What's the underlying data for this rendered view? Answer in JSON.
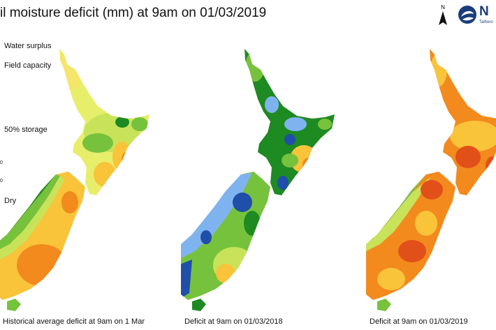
{
  "title": "il moisture deficit (mm) at  9am on 01/03/2019",
  "legend": {
    "labels": [
      "Water surplus",
      "Field capacity",
      "50% storage",
      "Dry"
    ],
    "ticks": [
      "0",
      "0"
    ],
    "colors": [
      "#1f4fa8",
      "#7fb3f0",
      "#1e8a22",
      "#77c23c",
      "#c8e35a",
      "#f2f06a",
      "#f9c33a",
      "#f28a1e",
      "#e2501a"
    ]
  },
  "maps": [
    {
      "caption": "Historical average deficit at 9am on 1 Mar"
    },
    {
      "caption": "Deficit at  9am on 01/03/2018"
    },
    {
      "caption": "Deficit at  9am on 01/03/2019"
    }
  ],
  "north_label": "N",
  "logo": {
    "text": "N",
    "subtext": "Taihoro"
  }
}
